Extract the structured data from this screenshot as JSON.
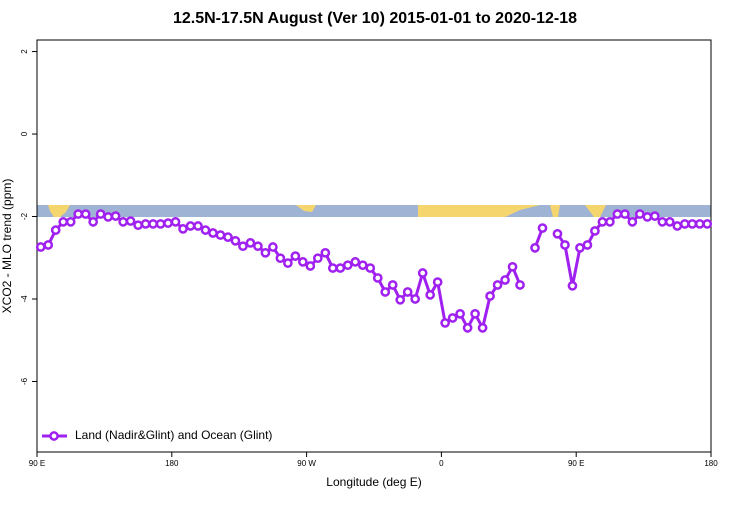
{
  "chart_data": {
    "type": "line",
    "title": "12.5N-17.5N August (Ver 10)   2015-01-01 to 2020-12-18",
    "x_label": "Longitude (deg E)",
    "y_label": "XCO2 - MLO trend (ppm)",
    "xlim": [
      90,
      540
    ],
    "xticks": [
      {
        "value": 90,
        "label": "90 E"
      },
      {
        "value": 180,
        "label": "180"
      },
      {
        "value": 270,
        "label": "90 W"
      },
      {
        "value": 360,
        "label": "0"
      },
      {
        "value": 450,
        "label": "90 E"
      },
      {
        "value": 540,
        "label": "180"
      }
    ],
    "ylim": [
      -7.71,
      2.28
    ],
    "yticks": [
      2,
      0,
      -2,
      -4,
      -6
    ],
    "legend": "bottomleft",
    "x": [
      92.5,
      97.5,
      102.5,
      107.5,
      112.5,
      117.5,
      122.5,
      127.5,
      132.5,
      137.5,
      142.5,
      147.5,
      152.5,
      157.5,
      162.5,
      167.5,
      172.5,
      177.5,
      182.5,
      187.5,
      192.5,
      197.5,
      202.5,
      207.5,
      212.5,
      217.5,
      222.5,
      227.5,
      232.5,
      237.5,
      242.5,
      247.5,
      252.5,
      257.5,
      262.5,
      267.5,
      272.5,
      277.5,
      282.5,
      287.5,
      292.5,
      297.5,
      302.5,
      307.5,
      312.5,
      317.5,
      322.5,
      327.5,
      332.5,
      337.5,
      342.5,
      347.5,
      352.5,
      357.5,
      362.5,
      367.5,
      372.5,
      377.5,
      382.5,
      387.5,
      392.5,
      397.5,
      402.5,
      407.5,
      412.5,
      417.5,
      422.5,
      427.5,
      432.5,
      437.5,
      442.5,
      447.5,
      452.5,
      457.5,
      462.5,
      467.5,
      472.5,
      477.5,
      482.5,
      487.5,
      492.5,
      497.5,
      502.5,
      507.5,
      512.5,
      517.5,
      522.5,
      527.5,
      532.5,
      537.5
    ],
    "series": [
      {
        "name": "Land (Nadir&Glint) and Ocean (Glint)",
        "color": "#a020f0",
        "values": [
          -2.74,
          -2.69,
          -2.33,
          -2.13,
          -2.13,
          -1.94,
          -1.94,
          -2.13,
          -1.94,
          -2.01,
          -1.99,
          -2.13,
          -2.11,
          -2.21,
          -2.18,
          -2.18,
          -2.18,
          -2.16,
          -2.13,
          -2.3,
          -2.23,
          -2.23,
          -2.33,
          -2.4,
          -2.45,
          -2.5,
          -2.59,
          -2.72,
          -2.64,
          -2.72,
          -2.88,
          -2.74,
          -3.01,
          -3.13,
          -2.96,
          -3.1,
          -3.2,
          -3.01,
          -2.88,
          -3.25,
          -3.25,
          -3.18,
          -3.1,
          -3.18,
          -3.25,
          -3.49,
          -3.83,
          -3.66,
          -4.02,
          -3.83,
          -4.0,
          -3.37,
          -3.9,
          -3.59,
          -4.58,
          -4.46,
          -4.36,
          -4.7,
          -4.36,
          -4.7,
          -3.93,
          -3.66,
          -3.54,
          -3.22,
          -3.66,
          null,
          -2.76,
          -2.28,
          null,
          -2.42,
          -2.69,
          -3.68,
          -2.76,
          -2.69,
          -2.35,
          -2.13,
          -2.13,
          -1.94,
          -1.94,
          -2.13,
          -1.94,
          -2.01,
          -1.99,
          -2.13,
          -2.13,
          -2.23,
          -2.18,
          -2.18,
          -2.18,
          -2.18
        ]
      }
    ]
  }
}
